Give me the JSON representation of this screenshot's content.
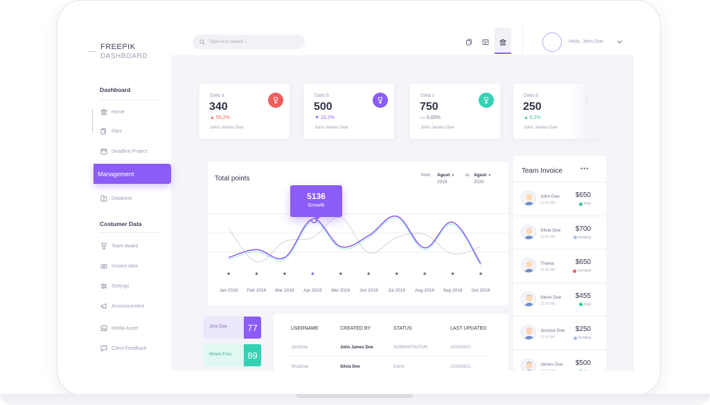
{
  "brand": {
    "line1": "FREEPIK",
    "line2": "DASHBOARD"
  },
  "sidebar": {
    "section1": "Dashboard",
    "items1": [
      {
        "label": "Home",
        "icon": "bank-icon"
      },
      {
        "label": "Files",
        "icon": "files-icon"
      },
      {
        "label": "Deadline Project",
        "icon": "calendar-icon"
      }
    ],
    "active": "Management",
    "items1b": [
      {
        "label": "Database",
        "icon": "database-icon"
      }
    ],
    "section2": "Costumer Data",
    "items2": [
      {
        "label": "Team Award",
        "icon": "award-icon"
      },
      {
        "label": "Invoice data",
        "icon": "invoice-icon"
      },
      {
        "label": "Settings",
        "icon": "settings-icon"
      },
      {
        "label": "Announcement",
        "icon": "megaphone-icon"
      },
      {
        "label": "Media Asset",
        "icon": "media-icon"
      },
      {
        "label": "Client Feedback",
        "icon": "chat-icon"
      }
    ]
  },
  "topbar": {
    "search_placeholder": "Type in to search ..",
    "greeting": "Hello, John Doe"
  },
  "cards": [
    {
      "label": "Data a",
      "value": "340",
      "change": "50,2%",
      "trend": "up",
      "who": "John James Doe",
      "color": "#f25c5c"
    },
    {
      "label": "Data b",
      "value": "500",
      "change": "10,2%",
      "trend": "down",
      "who": "John James Doe",
      "color": "#8b5cf6"
    },
    {
      "label": "Data c",
      "value": "750",
      "change": "0,00%",
      "trend": "flat",
      "who": "John James Doe",
      "color": "#34d1b4"
    },
    {
      "label": "Data d",
      "value": "250",
      "change": "6,2%",
      "trend": "up",
      "who": "John James Doe",
      "color": "#c5c8d6"
    }
  ],
  "chart": {
    "title": "Total points",
    "from_label": "from",
    "from_month": "Agust",
    "from_year": "2019",
    "to_label": "to",
    "to_month": "Agust",
    "to_year": "2020",
    "tooltip_value": "5136",
    "tooltip_label": "Growth"
  },
  "chart_data": {
    "type": "line",
    "title": "Total points",
    "categories": [
      "Jan 2019",
      "Feb 2019",
      "Mar 2019",
      "Apr 2019",
      "Mei 2019",
      "Jun 2019",
      "Jul 2019",
      "Aug 2019",
      "Sep 2019",
      "Oct 2019"
    ],
    "series": [
      {
        "color": "#8b5cf6",
        "values": [
          22,
          35,
          22,
          85,
          40,
          58,
          90,
          38,
          80,
          12
        ]
      },
      {
        "color": "#cfd1dc",
        "values": [
          70,
          15,
          48,
          55,
          88,
          30,
          55,
          60,
          28,
          40
        ]
      }
    ],
    "ylim": [
      0,
      100
    ],
    "highlight": {
      "index": 3,
      "value": 5136,
      "label": "Growth"
    },
    "grid": true
  },
  "team": {
    "title": "Team Invoice",
    "rows": [
      {
        "name": "John Doe",
        "time": "10:30 AM",
        "amount": "$650",
        "status": "Paid",
        "status_color": "#34c38f"
      },
      {
        "name": "Silvia Doe",
        "time": "10:30 AM",
        "amount": "$700",
        "status": "Pending",
        "status_color": "#9cc3f5"
      },
      {
        "name": "Thania",
        "time": "10:30 AM",
        "amount": "$650",
        "status": "Declined",
        "status_color": "#f25c5c"
      },
      {
        "name": "Steve Doe",
        "time": "10:30 AM",
        "amount": "$455",
        "status": "Paid",
        "status_color": "#34c38f"
      },
      {
        "name": "Jessica Doe",
        "time": "10:30 AM",
        "amount": "$250",
        "status": "Pending",
        "status_color": "#9cc3f5"
      },
      {
        "name": "James Doe",
        "time": "10:30 AM",
        "amount": "$500",
        "status": "Paid",
        "status_color": "#34c38f"
      }
    ]
  },
  "scores": [
    {
      "name": "John Doe",
      "value": "77",
      "bg": "#ece7fd",
      "color": "#8b5cf6"
    },
    {
      "name": "Moses Fuss",
      "value": "89",
      "bg": "#dff8f2",
      "color": "#34d1b4"
    }
  ],
  "table": {
    "headers": [
      "USERNAME",
      "CREATED BY",
      "STATUS",
      "LAST UPDATED"
    ],
    "rows": [
      [
        "JohnDoe",
        "John James Doe",
        "ADMINISTRATOR",
        "2019/08/22"
      ],
      [
        "SilviaDoe",
        "Silvia Doe",
        "Client",
        "2019/08/21"
      ]
    ]
  }
}
